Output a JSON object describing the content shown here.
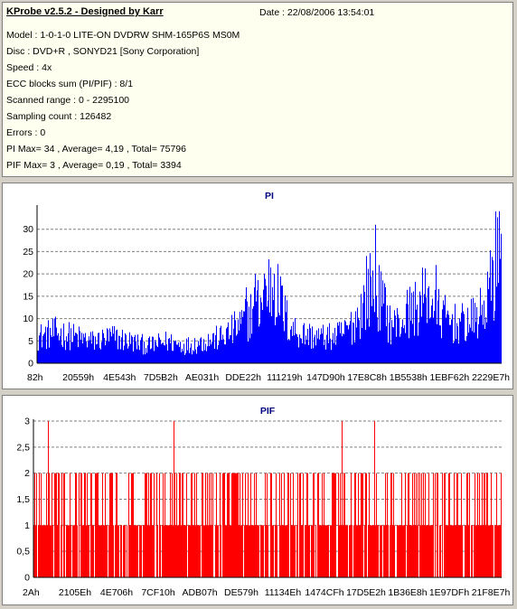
{
  "header": {
    "title": "KProbe v2.5.2 - Designed by Karr",
    "date": "Date : 22/08/2006 13:54:01",
    "lines": [
      "Model : 1-0-1-0 LITE-ON DVDRW SHM-165P6S MS0M",
      "Disc : DVD+R , SONYD21 [Sony Corporation]",
      "Speed : 4x",
      "ECC blocks sum (PI/PIF) : 8/1",
      "Scanned range : 0 - 2295100",
      "Sampling count : 126482",
      "Errors : 0",
      "PI Max= 34 , Average= 4,19 , Total= 75796",
      "PIF Max= 3 , Average= 0,19 , Total= 3394"
    ]
  },
  "chart_data": [
    {
      "type": "bar",
      "title": "PI",
      "color": "#0000ff",
      "ylim": [
        0,
        35
      ],
      "yticks": [
        "0",
        "5",
        "10",
        "15",
        "20",
        "25",
        "30"
      ],
      "xtick_labels": [
        "82h",
        "20559h",
        "4E543h",
        "7D5B2h",
        "AE031h",
        "DDE22h",
        "111219h",
        "147D90h",
        "17E8C8h",
        "1B5538h",
        "1EBF62h",
        "2229E7h"
      ],
      "grid": true,
      "profile": [
        [
          0,
          6
        ],
        [
          0.04,
          7
        ],
        [
          0.08,
          6
        ],
        [
          0.12,
          5
        ],
        [
          0.16,
          6
        ],
        [
          0.2,
          5
        ],
        [
          0.24,
          4
        ],
        [
          0.28,
          5
        ],
        [
          0.32,
          4
        ],
        [
          0.36,
          5
        ],
        [
          0.4,
          6
        ],
        [
          0.44,
          9
        ],
        [
          0.48,
          14
        ],
        [
          0.5,
          18
        ],
        [
          0.52,
          15
        ],
        [
          0.54,
          9
        ],
        [
          0.56,
          7
        ],
        [
          0.6,
          6
        ],
        [
          0.64,
          6
        ],
        [
          0.66,
          7
        ],
        [
          0.68,
          9
        ],
        [
          0.7,
          13
        ],
        [
          0.72,
          18
        ],
        [
          0.74,
          14
        ],
        [
          0.76,
          9
        ],
        [
          0.78,
          9
        ],
        [
          0.8,
          12
        ],
        [
          0.82,
          13
        ],
        [
          0.84,
          16
        ],
        [
          0.86,
          12
        ],
        [
          0.88,
          10
        ],
        [
          0.9,
          9
        ],
        [
          0.92,
          9
        ],
        [
          0.94,
          10
        ],
        [
          0.96,
          12
        ],
        [
          0.98,
          19
        ],
        [
          1,
          26
        ]
      ],
      "peaks": [
        {
          "x": 0.45,
          "y": 17
        },
        {
          "x": 0.47,
          "y": 20
        },
        {
          "x": 0.49,
          "y": 20
        },
        {
          "x": 0.51,
          "y": 20
        },
        {
          "x": 0.71,
          "y": 24
        },
        {
          "x": 0.73,
          "y": 31
        },
        {
          "x": 0.75,
          "y": 17
        },
        {
          "x": 0.86,
          "y": 22
        },
        {
          "x": 0.983,
          "y": 23
        },
        {
          "x": 0.988,
          "y": 34
        },
        {
          "x": 1,
          "y": 29
        }
      ]
    },
    {
      "type": "bar",
      "title": "PIF",
      "color": "#ff0000",
      "ylim": [
        0,
        3
      ],
      "yticks": [
        "0",
        "0,5",
        "1",
        "1,5",
        "2",
        "2,5",
        "3"
      ],
      "xtick_labels": [
        "2Ah",
        "2105Eh",
        "4E706h",
        "7CF10h",
        "ADB07h",
        "DE579h",
        "11134Eh",
        "1474CFh",
        "17D5E2h",
        "1B36E8h",
        "1E97DFh",
        "21F8E7h"
      ],
      "grid": true,
      "max_positions": [
        0.03,
        0.3,
        0.66,
        0.73
      ],
      "level_probabilities": [
        0.55,
        0.33,
        0.12
      ]
    }
  ]
}
